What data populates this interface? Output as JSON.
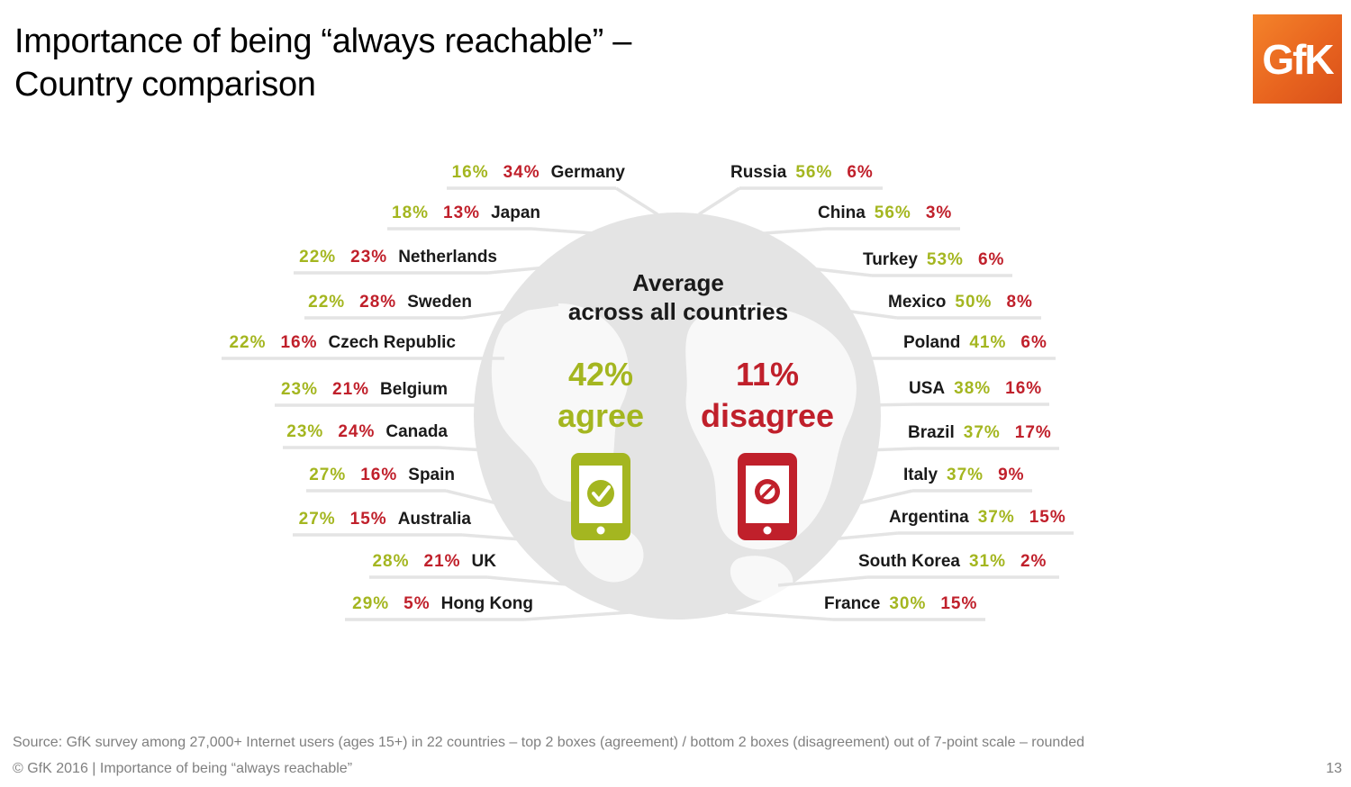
{
  "title_line1": "Importance of being “always reachable” –",
  "title_line2": "Country comparison",
  "logo_text": "GfK",
  "colors": {
    "agree": "#a4b620",
    "disagree": "#c0202b",
    "logo": "#e8641f",
    "globe": "#e4e4e4"
  },
  "average": {
    "heading_line1": "Average",
    "heading_line2": "across all countries",
    "agree_value": "42%",
    "agree_label": "agree",
    "disagree_value": "11%",
    "disagree_label": "disagree",
    "agree_icon": "phone-check-icon",
    "disagree_icon": "phone-blocked-icon"
  },
  "chart_data": {
    "type": "table",
    "series": [
      {
        "name": "agree"
      },
      {
        "name": "disagree"
      }
    ],
    "left_countries": [
      {
        "country": "Germany",
        "agree": "16%",
        "disagree": "34%"
      },
      {
        "country": "Japan",
        "agree": "18%",
        "disagree": "13%"
      },
      {
        "country": "Netherlands",
        "agree": "22%",
        "disagree": "23%"
      },
      {
        "country": "Sweden",
        "agree": "22%",
        "disagree": "28%"
      },
      {
        "country": "Czech Republic",
        "agree": "22%",
        "disagree": "16%"
      },
      {
        "country": "Belgium",
        "agree": "23%",
        "disagree": "21%"
      },
      {
        "country": "Canada",
        "agree": "23%",
        "disagree": "24%"
      },
      {
        "country": "Spain",
        "agree": "27%",
        "disagree": "16%"
      },
      {
        "country": "Australia",
        "agree": "27%",
        "disagree": "15%"
      },
      {
        "country": "UK",
        "agree": "28%",
        "disagree": "21%"
      },
      {
        "country": "Hong Kong",
        "agree": "29%",
        "disagree": "5%"
      }
    ],
    "right_countries": [
      {
        "country": "Russia",
        "agree": "56%",
        "disagree": "6%"
      },
      {
        "country": "China",
        "agree": "56%",
        "disagree": "3%"
      },
      {
        "country": "Turkey",
        "agree": "53%",
        "disagree": "6%"
      },
      {
        "country": "Mexico",
        "agree": "50%",
        "disagree": "8%"
      },
      {
        "country": "Poland",
        "agree": "41%",
        "disagree": "6%"
      },
      {
        "country": "USA",
        "agree": "38%",
        "disagree": "16%"
      },
      {
        "country": "Brazil",
        "agree": "37%",
        "disagree": "17%"
      },
      {
        "country": "Italy",
        "agree": "37%",
        "disagree": "9%"
      },
      {
        "country": "Argentina",
        "agree": "37%",
        "disagree": "15%"
      },
      {
        "country": "South Korea",
        "agree": "31%",
        "disagree": "2%"
      },
      {
        "country": "France",
        "agree": "30%",
        "disagree": "15%"
      }
    ]
  },
  "footer": {
    "source": "Source: GfK survey among 27,000+ Internet users (ages 15+) in 22 countries – top 2 boxes (agreement) / bottom 2 boxes (disagreement) out of 7-point scale – rounded",
    "copyright": "© GfK 2016 | Importance of being “always reachable”",
    "page_number": "13"
  }
}
